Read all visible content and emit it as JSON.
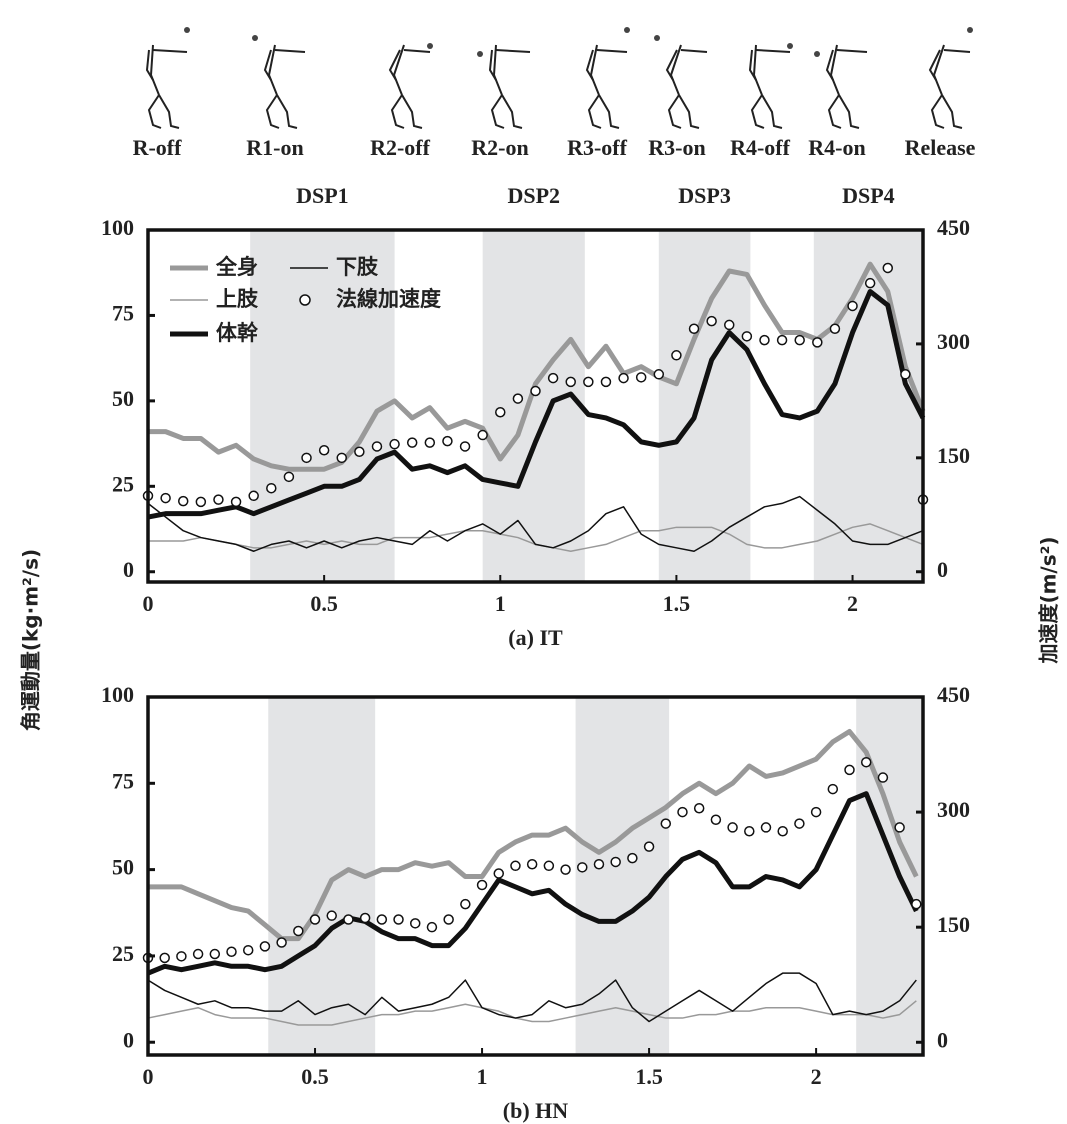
{
  "phases": [
    "R-off",
    "R1-on",
    "R2-off",
    "R2-on",
    "R3-off",
    "R3-on",
    "R4-off",
    "R4-on",
    "Release"
  ],
  "y_label": "角運動量(kg·m²/s)",
  "y2_label": "加速度(m/s²)",
  "chart_data": [
    {
      "type": "line",
      "xlabel": "(a) IT",
      "xlim": [
        0,
        2.2
      ],
      "xticks": [
        0,
        0.5,
        1,
        1.5,
        2
      ],
      "ylim": [
        -3,
        100
      ],
      "yticks": [
        0,
        25,
        50,
        75,
        100
      ],
      "y2lim": [
        -13.5,
        450
      ],
      "y2ticks": [
        0,
        150,
        300,
        450
      ],
      "shaded": [
        [
          0.29,
          0.7
        ],
        [
          0.95,
          1.24
        ],
        [
          1.45,
          1.71
        ],
        [
          1.89,
          2.2
        ]
      ],
      "shaded_labels": [
        "DSP1",
        "DSP2",
        "DSP3",
        "DSP4"
      ],
      "shade_color": "#e3e4e6",
      "legend": "upper left",
      "x": [
        0,
        0.05,
        0.1,
        0.15,
        0.2,
        0.25,
        0.3,
        0.35,
        0.4,
        0.45,
        0.5,
        0.55,
        0.6,
        0.65,
        0.7,
        0.75,
        0.8,
        0.85,
        0.9,
        0.95,
        1,
        1.05,
        1.1,
        1.15,
        1.2,
        1.25,
        1.3,
        1.35,
        1.4,
        1.45,
        1.5,
        1.55,
        1.6,
        1.65,
        1.7,
        1.75,
        1.8,
        1.85,
        1.9,
        1.95,
        2,
        2.05,
        2.1,
        2.15,
        2.2
      ],
      "series": [
        {
          "name": "全身",
          "color": "#999999",
          "width": 5,
          "values": [
            41,
            41,
            39,
            39,
            35,
            37,
            33,
            31,
            30,
            30,
            30,
            32,
            38,
            47,
            50,
            45,
            48,
            42,
            44,
            42,
            33,
            40,
            55,
            62,
            68,
            60,
            66,
            58,
            60,
            57,
            55,
            68,
            80,
            88,
            87,
            78,
            70,
            70,
            68,
            72,
            80,
            90,
            82,
            60,
            47
          ]
        },
        {
          "name": "上肢",
          "color": "#999999",
          "width": 1.5,
          "values": [
            9,
            9,
            9,
            10,
            9,
            8,
            7,
            7,
            8,
            9,
            8,
            9,
            8,
            8,
            10,
            10,
            10,
            11,
            12,
            12,
            11,
            10,
            8,
            7,
            6,
            7,
            8,
            10,
            12,
            12,
            13,
            13,
            13,
            11,
            8,
            7,
            7,
            8,
            9,
            11,
            13,
            14,
            12,
            10,
            8
          ]
        },
        {
          "name": "体幹",
          "color": "#111111",
          "width": 5,
          "values": [
            16,
            17,
            17,
            17,
            18,
            19,
            17,
            19,
            21,
            23,
            25,
            25,
            27,
            33,
            35,
            30,
            31,
            29,
            31,
            27,
            26,
            25,
            38,
            50,
            52,
            46,
            45,
            43,
            38,
            37,
            38,
            45,
            62,
            70,
            65,
            55,
            46,
            45,
            47,
            55,
            70,
            82,
            78,
            55,
            45
          ]
        },
        {
          "name": "下肢",
          "color": "#111111",
          "width": 1.5,
          "values": [
            20,
            16,
            12,
            10,
            9,
            8,
            6,
            8,
            9,
            7,
            9,
            7,
            9,
            10,
            9,
            8,
            12,
            9,
            12,
            14,
            11,
            15,
            8,
            7,
            9,
            12,
            17,
            19,
            11,
            8,
            7,
            6,
            9,
            13,
            16,
            19,
            20,
            22,
            18,
            14,
            9,
            8,
            8,
            10,
            12
          ]
        },
        {
          "name": "法線加速度",
          "color": "#111111",
          "marker": "circle",
          "axis": "y2",
          "values": [
            100,
            97,
            93,
            92,
            95,
            92,
            100,
            110,
            125,
            150,
            160,
            150,
            158,
            165,
            168,
            170,
            170,
            172,
            165,
            180,
            210,
            228,
            238,
            255,
            250,
            250,
            250,
            255,
            256,
            260,
            285,
            320,
            330,
            325,
            310,
            305,
            305,
            305,
            302,
            320,
            350,
            380,
            400,
            260,
            95
          ]
        }
      ]
    },
    {
      "type": "line",
      "xlabel": "(b) HN",
      "xlim": [
        0,
        2.32
      ],
      "xticks": [
        0,
        0.5,
        1,
        1.5,
        2
      ],
      "ylim": [
        -3.7,
        100
      ],
      "yticks": [
        0,
        25,
        50,
        75,
        100
      ],
      "y2lim": [
        -16.6,
        450
      ],
      "y2ticks": [
        0,
        150,
        300,
        450
      ],
      "shaded": [
        [
          0.36,
          0.68
        ],
        [
          1.28,
          1.56
        ],
        [
          2.12,
          2.32
        ]
      ],
      "shade_color": "#e3e4e6",
      "x": [
        0,
        0.05,
        0.1,
        0.15,
        0.2,
        0.25,
        0.3,
        0.35,
        0.4,
        0.45,
        0.5,
        0.55,
        0.6,
        0.65,
        0.7,
        0.75,
        0.8,
        0.85,
        0.9,
        0.95,
        1,
        1.05,
        1.1,
        1.15,
        1.2,
        1.25,
        1.3,
        1.35,
        1.4,
        1.45,
        1.5,
        1.55,
        1.6,
        1.65,
        1.7,
        1.75,
        1.8,
        1.85,
        1.9,
        1.95,
        2,
        2.05,
        2.1,
        2.15,
        2.2,
        2.25,
        2.3
      ],
      "series": [
        {
          "color": "#999999",
          "width": 5,
          "values": [
            45,
            45,
            45,
            43,
            41,
            39,
            38,
            34,
            30,
            30,
            37,
            47,
            50,
            48,
            50,
            50,
            52,
            51,
            52,
            48,
            48,
            55,
            58,
            60,
            60,
            62,
            58,
            55,
            58,
            62,
            65,
            68,
            72,
            75,
            72,
            75,
            80,
            77,
            78,
            80,
            82,
            87,
            90,
            84,
            72,
            58,
            48
          ]
        },
        {
          "color": "#999999",
          "width": 1.5,
          "values": [
            7,
            8,
            9,
            10,
            8,
            7,
            7,
            7,
            6,
            5,
            5,
            5,
            6,
            7,
            8,
            8,
            9,
            9,
            10,
            11,
            10,
            9,
            7,
            6,
            6,
            7,
            8,
            9,
            10,
            9,
            8,
            7,
            7,
            8,
            8,
            9,
            9,
            10,
            10,
            10,
            9,
            8,
            8,
            8,
            7,
            8,
            12
          ]
        },
        {
          "color": "#111111",
          "width": 5,
          "values": [
            20,
            22,
            21,
            22,
            23,
            22,
            22,
            21,
            22,
            25,
            28,
            33,
            36,
            35,
            32,
            30,
            30,
            28,
            28,
            33,
            40,
            47,
            45,
            43,
            44,
            40,
            37,
            35,
            35,
            38,
            42,
            48,
            53,
            55,
            52,
            45,
            45,
            48,
            47,
            45,
            50,
            60,
            70,
            72,
            60,
            48,
            38
          ]
        },
        {
          "color": "#111111",
          "width": 1.5,
          "values": [
            18,
            15,
            13,
            11,
            12,
            10,
            10,
            9,
            9,
            12,
            8,
            10,
            11,
            8,
            13,
            9,
            10,
            11,
            13,
            18,
            10,
            8,
            7,
            8,
            12,
            10,
            11,
            14,
            18,
            10,
            6,
            9,
            12,
            15,
            12,
            9,
            13,
            17,
            20,
            20,
            17,
            8,
            9,
            8,
            9,
            12,
            18
          ]
        },
        {
          "color": "#111111",
          "marker": "circle",
          "axis": "y2",
          "values": [
            110,
            110,
            112,
            115,
            115,
            118,
            120,
            125,
            130,
            145,
            160,
            165,
            160,
            162,
            160,
            160,
            155,
            150,
            160,
            180,
            205,
            220,
            230,
            232,
            230,
            225,
            228,
            232,
            235,
            240,
            255,
            285,
            300,
            305,
            290,
            280,
            275,
            280,
            275,
            285,
            300,
            330,
            355,
            365,
            345,
            280,
            180
          ]
        }
      ]
    }
  ]
}
